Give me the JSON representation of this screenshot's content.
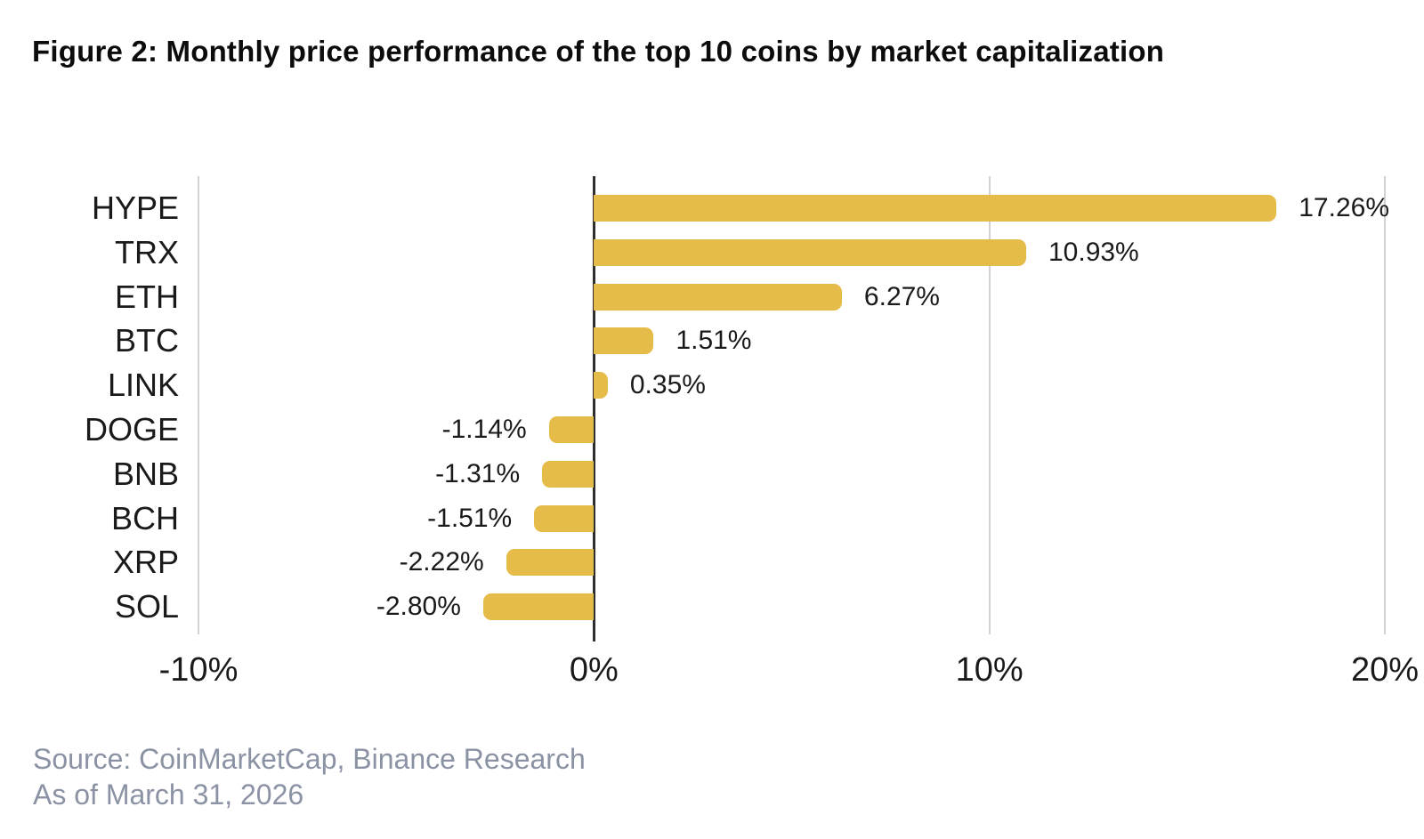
{
  "title": "Figure 2: Monthly price performance of the top 10 coins by market capitalization",
  "source": {
    "line1": "Source: CoinMarketCap, Binance Research",
    "line2": "As of March 31, 2026"
  },
  "colors": {
    "bar": "#e5bb49",
    "grid": "#d2d2d2",
    "zero_line": "#2e2e2e",
    "title_text": "#0c0c0c",
    "label_text": "#1a1a1a",
    "source_text": "#8a92a4",
    "background": "#ffffff"
  },
  "chart_data": {
    "type": "bar",
    "orientation": "horizontal",
    "title": "Figure 2: Monthly price performance of the top 10 coins by market capitalization",
    "categories": [
      "HYPE",
      "TRX",
      "ETH",
      "BTC",
      "LINK",
      "DOGE",
      "BNB",
      "BCH",
      "XRP",
      "SOL"
    ],
    "values": [
      17.26,
      10.93,
      6.27,
      1.51,
      0.35,
      -1.14,
      -1.31,
      -1.51,
      -2.22,
      -2.8
    ],
    "value_labels": [
      "17.26%",
      "10.93%",
      "6.27%",
      "1.51%",
      "0.35%",
      "-1.14%",
      "-1.31%",
      "-1.51%",
      "-2.22%",
      "-2.80%"
    ],
    "xlabel": "",
    "ylabel": "",
    "xlim": [
      -10,
      20
    ],
    "x_ticks": [
      -10,
      0,
      10,
      20
    ],
    "x_tick_labels": [
      "-10%",
      "0%",
      "10%",
      "20%"
    ],
    "grid": true,
    "legend": false,
    "unit": "percent"
  }
}
